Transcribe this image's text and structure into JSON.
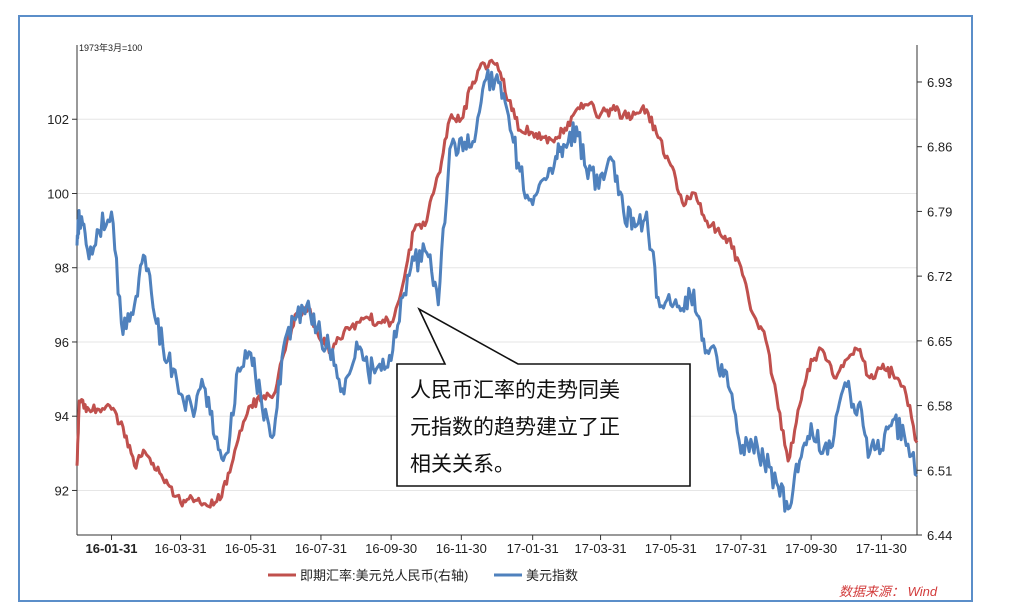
{
  "chart_data": {
    "type": "line",
    "unit_note": "1973年3月=100",
    "x_ticks": [
      "16-01-31",
      "16-03-31",
      "16-05-31",
      "16-07-31",
      "16-09-30",
      "16-11-30",
      "17-01-31",
      "17-03-31",
      "17-05-31",
      "17-07-31",
      "17-09-30",
      "17-11-30"
    ],
    "y_left": {
      "ticks": [
        92,
        94,
        96,
        98,
        100,
        102
      ],
      "range": [
        90.8,
        104.0
      ]
    },
    "y_right": {
      "ticks": [
        6.44,
        6.51,
        6.58,
        6.65,
        6.72,
        6.79,
        6.86,
        6.93
      ],
      "range": [
        6.44,
        6.97
      ]
    },
    "series": [
      {
        "name": "即期汇率:美元兑人民币(右轴)",
        "axis": "right",
        "color": "#c0504d",
        "points": [
          [
            "16-01-01",
            6.515
          ],
          [
            "16-01-03",
            6.585
          ],
          [
            "16-01-10",
            6.578
          ],
          [
            "16-01-20",
            6.576
          ],
          [
            "16-01-31",
            6.576
          ],
          [
            "16-02-10",
            6.557
          ],
          [
            "16-02-20",
            6.515
          ],
          [
            "16-02-29",
            6.53
          ],
          [
            "16-03-10",
            6.51
          ],
          [
            "16-03-20",
            6.495
          ],
          [
            "16-03-31",
            6.475
          ],
          [
            "16-04-10",
            6.48
          ],
          [
            "16-04-20",
            6.474
          ],
          [
            "16-04-30",
            6.475
          ],
          [
            "16-05-10",
            6.495
          ],
          [
            "16-05-20",
            6.543
          ],
          [
            "16-05-31",
            6.58
          ],
          [
            "16-06-10",
            6.588
          ],
          [
            "16-06-20",
            6.592
          ],
          [
            "16-06-30",
            6.64
          ],
          [
            "16-07-10",
            6.68
          ],
          [
            "16-07-20",
            6.685
          ],
          [
            "16-07-31",
            6.65
          ],
          [
            "16-08-10",
            6.64
          ],
          [
            "16-08-20",
            6.66
          ],
          [
            "16-08-31",
            6.67
          ],
          [
            "16-09-10",
            6.675
          ],
          [
            "16-09-20",
            6.67
          ],
          [
            "16-09-30",
            6.67
          ],
          [
            "16-10-10",
            6.71
          ],
          [
            "16-10-20",
            6.77
          ],
          [
            "16-10-31",
            6.78
          ],
          [
            "16-11-10",
            6.83
          ],
          [
            "16-11-20",
            6.89
          ],
          [
            "16-11-30",
            6.89
          ],
          [
            "16-12-10",
            6.93
          ],
          [
            "16-12-20",
            6.95
          ],
          [
            "16-12-31",
            6.95
          ],
          [
            "17-01-10",
            6.91
          ],
          [
            "17-01-20",
            6.878
          ],
          [
            "17-01-31",
            6.875
          ],
          [
            "17-02-10",
            6.87
          ],
          [
            "17-02-20",
            6.87
          ],
          [
            "17-02-28",
            6.88
          ],
          [
            "17-03-10",
            6.9
          ],
          [
            "17-03-20",
            6.905
          ],
          [
            "17-03-31",
            6.895
          ],
          [
            "17-04-10",
            6.9
          ],
          [
            "17-04-20",
            6.895
          ],
          [
            "17-04-30",
            6.895
          ],
          [
            "17-05-10",
            6.9
          ],
          [
            "17-05-20",
            6.87
          ],
          [
            "17-05-31",
            6.84
          ],
          [
            "17-06-10",
            6.8
          ],
          [
            "17-06-20",
            6.81
          ],
          [
            "17-06-30",
            6.78
          ],
          [
            "17-07-10",
            6.77
          ],
          [
            "17-07-20",
            6.76
          ],
          [
            "17-07-31",
            6.73
          ],
          [
            "17-08-10",
            6.68
          ],
          [
            "17-08-20",
            6.66
          ],
          [
            "17-08-31",
            6.59
          ],
          [
            "17-09-10",
            6.52
          ],
          [
            "17-09-20",
            6.58
          ],
          [
            "17-09-30",
            6.63
          ],
          [
            "17-10-10",
            6.64
          ],
          [
            "17-10-20",
            6.61
          ],
          [
            "17-10-31",
            6.63
          ],
          [
            "17-11-10",
            6.64
          ],
          [
            "17-11-20",
            6.61
          ],
          [
            "17-11-30",
            6.62
          ],
          [
            "17-12-10",
            6.615
          ],
          [
            "17-12-20",
            6.6
          ],
          [
            "17-12-31",
            6.54
          ]
        ]
      },
      {
        "name": "美元指数",
        "axis": "left",
        "color": "#4f81bd",
        "points": [
          [
            "16-01-01",
            98.6
          ],
          [
            "16-01-03",
            99.4
          ],
          [
            "16-01-10",
            98.5
          ],
          [
            "16-01-20",
            99.0
          ],
          [
            "16-01-31",
            99.5
          ],
          [
            "16-02-10",
            96.2
          ],
          [
            "16-02-20",
            97.0
          ],
          [
            "16-02-29",
            98.3
          ],
          [
            "16-03-10",
            96.5
          ],
          [
            "16-03-20",
            95.5
          ],
          [
            "16-03-31",
            94.6
          ],
          [
            "16-04-10",
            94.2
          ],
          [
            "16-04-20",
            94.8
          ],
          [
            "16-04-30",
            93.4
          ],
          [
            "16-05-10",
            93.0
          ],
          [
            "16-05-20",
            95.3
          ],
          [
            "16-05-31",
            95.7
          ],
          [
            "16-06-10",
            94.2
          ],
          [
            "16-06-20",
            93.5
          ],
          [
            "16-06-30",
            96.1
          ],
          [
            "16-07-10",
            96.7
          ],
          [
            "16-07-20",
            97.1
          ],
          [
            "16-07-31",
            96.1
          ],
          [
            "16-08-10",
            95.8
          ],
          [
            "16-08-20",
            94.6
          ],
          [
            "16-08-31",
            96.0
          ],
          [
            "16-09-10",
            95.2
          ],
          [
            "16-09-20",
            95.4
          ],
          [
            "16-09-30",
            95.5
          ],
          [
            "16-10-10",
            97.2
          ],
          [
            "16-10-20",
            98.2
          ],
          [
            "16-10-31",
            98.4
          ],
          [
            "16-11-10",
            97.0
          ],
          [
            "16-11-20",
            101.2
          ],
          [
            "16-11-30",
            101.5
          ],
          [
            "16-12-10",
            101.4
          ],
          [
            "16-12-20",
            103.0
          ],
          [
            "16-12-31",
            103.2
          ],
          [
            "17-01-10",
            102.1
          ],
          [
            "17-01-20",
            100.6
          ],
          [
            "17-01-31",
            99.7
          ],
          [
            "17-02-10",
            100.4
          ],
          [
            "17-02-20",
            101.0
          ],
          [
            "17-02-28",
            101.3
          ],
          [
            "17-03-10",
            101.8
          ],
          [
            "17-03-20",
            100.4
          ],
          [
            "17-03-31",
            100.5
          ],
          [
            "17-04-10",
            100.9
          ],
          [
            "17-04-20",
            99.5
          ],
          [
            "17-04-30",
            99.1
          ],
          [
            "17-05-10",
            99.5
          ],
          [
            "17-05-20",
            97.2
          ],
          [
            "17-05-31",
            97.0
          ],
          [
            "17-06-10",
            96.9
          ],
          [
            "17-06-20",
            97.4
          ],
          [
            "17-06-30",
            95.7
          ],
          [
            "17-07-10",
            95.6
          ],
          [
            "17-07-20",
            94.8
          ],
          [
            "17-07-31",
            93.0
          ],
          [
            "17-08-10",
            93.2
          ],
          [
            "17-08-20",
            92.8
          ],
          [
            "17-08-31",
            92.2
          ],
          [
            "17-09-10",
            91.5
          ],
          [
            "17-09-20",
            92.8
          ],
          [
            "17-09-30",
            93.8
          ],
          [
            "17-10-10",
            93.0
          ],
          [
            "17-10-20",
            93.5
          ],
          [
            "17-10-31",
            94.8
          ],
          [
            "17-11-10",
            94.3
          ],
          [
            "17-11-20",
            93.0
          ],
          [
            "17-11-30",
            93.1
          ],
          [
            "17-12-10",
            93.9
          ],
          [
            "17-12-20",
            93.5
          ],
          [
            "17-12-31",
            92.4
          ]
        ]
      }
    ],
    "annotation": "人民币汇率的走势同美元指数的趋势建立了正相关关系。",
    "legend_position": "bottom-left",
    "grid": true
  },
  "legend": {
    "items": [
      {
        "label": "即期汇率:美元兑人民币(右轴)",
        "color": "#c0504d"
      },
      {
        "label": "美元指数",
        "color": "#4f81bd"
      }
    ]
  },
  "source": "数据来源：  Wind",
  "callout_lines": [
    "人民币汇率的走势同美",
    "元指数的趋势建立了正",
    "相关关系。"
  ]
}
